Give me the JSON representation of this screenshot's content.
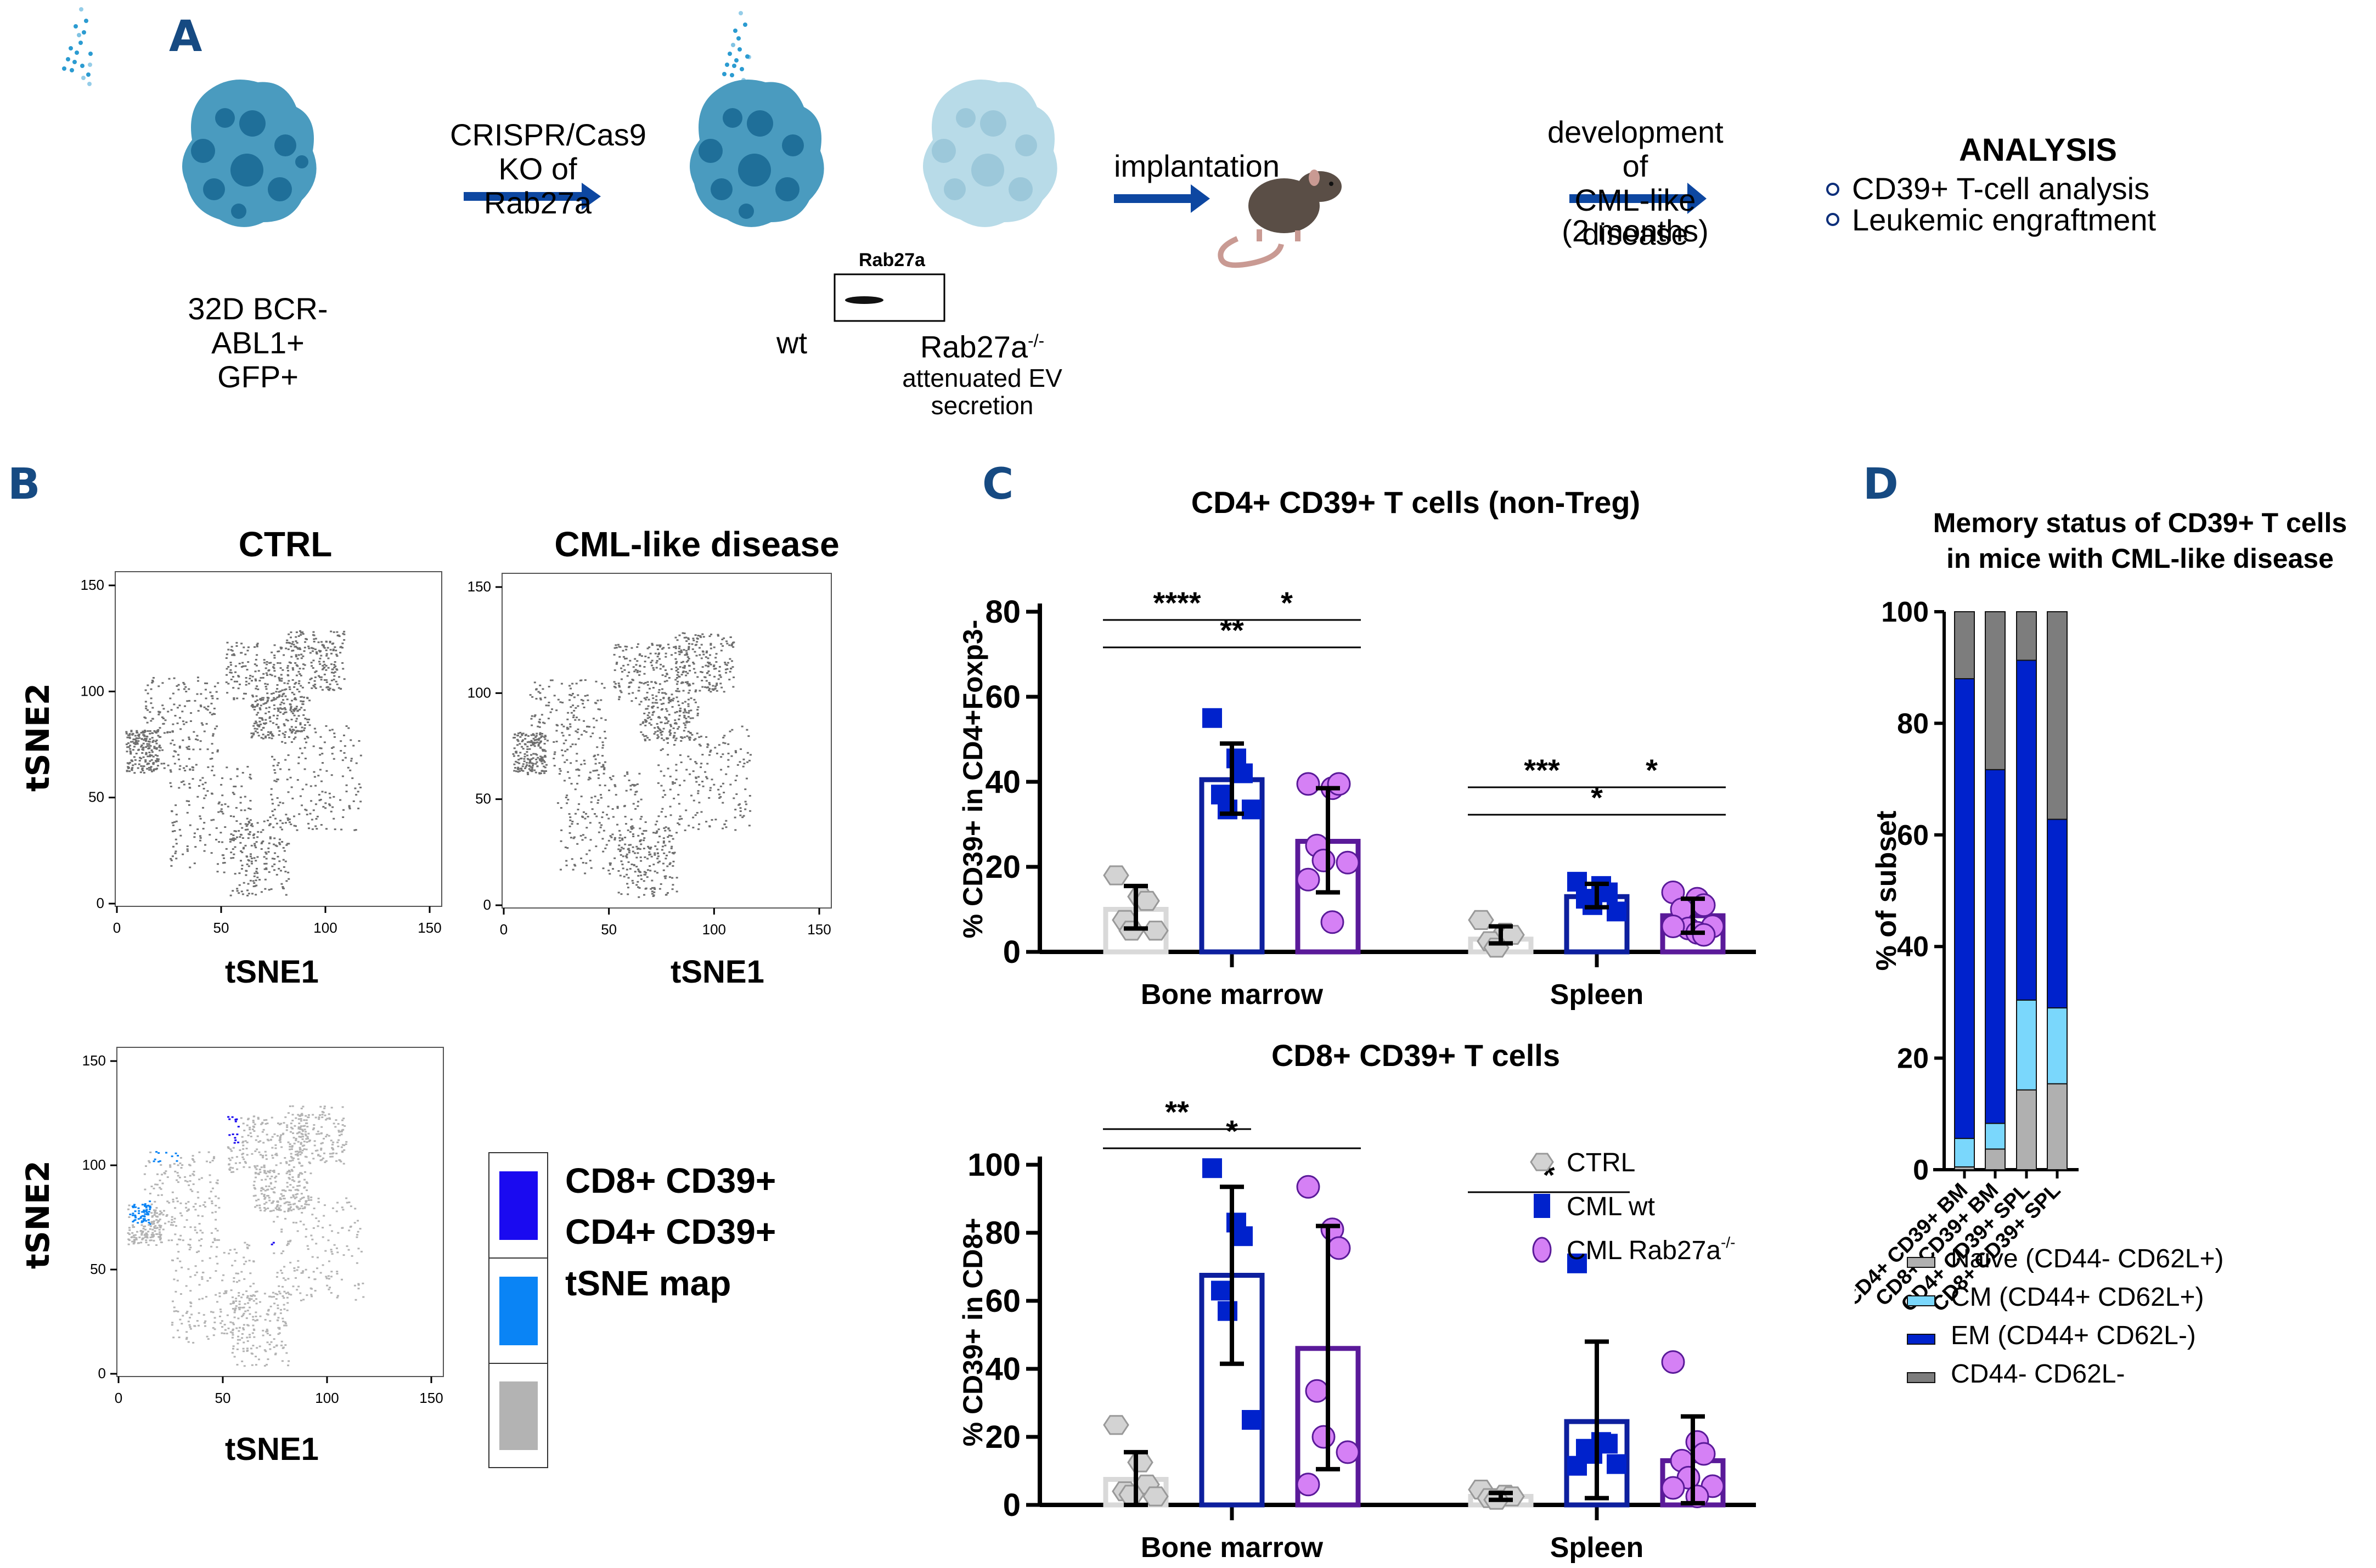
{
  "figure": {
    "panels": {
      "A": {
        "letter": "A",
        "cell_line_label_1": "32D BCR-ABL1+",
        "cell_line_label_2": "GFP+",
        "step1_label_1": "CRISPR/Cas9",
        "step1_label_2": "KO of Rab27a",
        "wt_label": "wt",
        "ko_label": "Rab27a",
        "ko_superscript": "-/-",
        "ko_sublabel_1": "attenuated EV",
        "ko_sublabel_2": "secretion",
        "blot_label": "Rab27a",
        "step2_label": "implantation",
        "step3_label_1": "development of",
        "step3_label_2": "CML-like disease",
        "step3_label_3": "(2 months)",
        "analysis_title": "ANALYSIS",
        "analysis_items": [
          "CD39+ T-cell analysis",
          "Leukemic engraftment"
        ],
        "colors": {
          "arrow": "#0d47a1",
          "cell_dark": "#4a9bbf",
          "cell_light": "#b8dbe8",
          "letter": "#164a82"
        }
      },
      "B": {
        "letter": "B",
        "plots": [
          {
            "title": "CTRL",
            "xlabel": "tSNE1",
            "ylabel": "tSNE2",
            "ticks": [
              "0",
              "50",
              "100",
              "150"
            ]
          },
          {
            "title": "CML-like disease",
            "xlabel": "tSNE1",
            "ylabel": "",
            "ticks": [
              "0",
              "50",
              "100",
              "150"
            ]
          },
          {
            "title": "",
            "xlabel": "tSNE1",
            "ylabel": "tSNE2",
            "ticks": [
              "0",
              "50",
              "100",
              "150"
            ]
          }
        ],
        "legend": [
          {
            "label": "CD8+ CD39+",
            "color": "#1a0af0"
          },
          {
            "label": "CD4+ CD39+",
            "color": "#0a84f5"
          },
          {
            "label": "tSNE map",
            "color": "#b3b3b3"
          }
        ]
      },
      "C": {
        "letter": "C"
      },
      "D": {
        "letter": "D"
      }
    }
  },
  "chart_data": [
    {
      "id": "C-top",
      "type": "bar",
      "title": "CD4+ CD39+ T cells (non-Treg)",
      "xlabel": "",
      "ylabel": "% CD39+ in CD4+Foxp3-",
      "ylim": [
        0,
        80
      ],
      "yticks": [
        0,
        20,
        40,
        60,
        80
      ],
      "categories": [
        "Bone marrow",
        "Spleen"
      ],
      "series": [
        {
          "name": "CTRL",
          "color": "#d3d3d3",
          "stroke": "#999999",
          "marker": "hexagon",
          "means": [
            10,
            3
          ],
          "err_low": [
            5.5,
            2
          ],
          "err_high": [
            15.5,
            6
          ],
          "points": [
            [
              18,
              13,
              12,
              7.5,
              5,
              5
            ],
            [
              7.5,
              4.5,
              4,
              2.5,
              1
            ]
          ]
        },
        {
          "name": "CML wt",
          "color": "#0022cc",
          "stroke": "#0d1f9e",
          "marker": "square",
          "means": [
            40.5,
            13
          ],
          "err_low": [
            32.5,
            10.5
          ],
          "err_high": [
            49,
            16
          ],
          "points": [
            [
              55,
              45.5,
              42,
              37,
              33.5,
              33.5
            ],
            [
              16.5,
              15.5,
              14,
              12.5,
              11,
              9.5
            ]
          ]
        },
        {
          "name": "CML Rab27a-/-",
          "color": "#d580f5",
          "stroke": "#5a1a99",
          "marker": "circle",
          "means": [
            26,
            8.5
          ],
          "err_low": [
            14,
            4.5
          ],
          "err_high": [
            38.5,
            12.5
          ],
          "points": [
            [
              39.5,
              38.5,
              39.5,
              25,
              21.5,
              21,
              17,
              7
            ],
            [
              14,
              12.5,
              11,
              10,
              5.5,
              6,
              6,
              4.5,
              4
            ]
          ]
        }
      ],
      "significance": [
        {
          "group": "Bone marrow",
          "from": 0,
          "to": 1,
          "label": "****",
          "level": 1
        },
        {
          "group": "Bone marrow",
          "from": 1,
          "to": 2,
          "label": "*",
          "level": 1
        },
        {
          "group": "Bone marrow",
          "from": 0,
          "to": 2,
          "label": "**",
          "level": 0
        },
        {
          "group": "Spleen",
          "from": 0,
          "to": 1,
          "label": "***",
          "level": 1
        },
        {
          "group": "Spleen",
          "from": 1,
          "to": 2,
          "label": "*",
          "level": 1
        },
        {
          "group": "Spleen",
          "from": 0,
          "to": 2,
          "label": "*",
          "level": 0
        }
      ]
    },
    {
      "id": "C-bottom",
      "type": "bar",
      "title": "CD8+ CD39+ T cells",
      "xlabel": "",
      "ylabel": "% CD39+ in CD8+",
      "ylim": [
        0,
        100
      ],
      "yticks": [
        0,
        20,
        40,
        60,
        80,
        100
      ],
      "categories": [
        "Bone marrow",
        "Spleen"
      ],
      "legend": [
        "CTRL",
        "CML wt",
        "CML Rab27a-/-"
      ],
      "series": [
        {
          "name": "CTRL",
          "color": "#d3d3d3",
          "stroke": "#999999",
          "marker": "hexagon",
          "means": [
            7.5,
            2.5
          ],
          "err_low": [
            0,
            1.5
          ],
          "err_high": [
            15.5,
            3.5
          ],
          "points": [
            [
              23.5,
              12.5,
              6,
              4,
              3,
              2.5
            ],
            [
              4.5,
              3,
              2.5,
              2,
              1.5
            ]
          ]
        },
        {
          "name": "CML wt",
          "color": "#0022cc",
          "stroke": "#0d1f9e",
          "marker": "square",
          "means": [
            67.5,
            24.5
          ],
          "err_low": [
            41.5,
            2
          ],
          "err_high": [
            93.5,
            48
          ],
          "points": [
            [
              99,
              83,
              79,
              63,
              57,
              25
            ],
            [
              71,
              18.5,
              18,
              16.5,
              15,
              12,
              11.5
            ]
          ]
        },
        {
          "name": "CML Rab27a-/-",
          "color": "#d580f5",
          "stroke": "#5a1a99",
          "marker": "circle",
          "means": [
            46,
            13
          ],
          "err_low": [
            10.5,
            0.5
          ],
          "err_high": [
            82,
            26
          ],
          "points": [
            [
              93.5,
              81,
              75.5,
              33.5,
              20,
              15.5,
              6
            ],
            [
              42,
              18.5,
              15,
              13,
              8,
              5.5,
              5,
              2.5
            ]
          ]
        }
      ],
      "significance": [
        {
          "group": "Bone marrow",
          "from": 0,
          "to": 1,
          "label": "**",
          "level": 1
        },
        {
          "group": "Bone marrow",
          "from": 0,
          "to": 2,
          "label": "*",
          "level": 0
        },
        {
          "group": "Spleen",
          "from": 0,
          "to": 1,
          "label": "*",
          "level": 0
        }
      ]
    },
    {
      "id": "D",
      "type": "bar",
      "stacked": true,
      "title": "Memory status of CD39+ T cells in mice with CML-like disease",
      "title_lines": [
        "Memory status of CD39+ T cells",
        "in mice with CML-like disease"
      ],
      "xlabel": "",
      "ylabel": "% of subset",
      "ylim": [
        0,
        100
      ],
      "yticks": [
        0,
        20,
        40,
        60,
        80,
        100
      ],
      "categories": [
        "CD4+ CD39+ BM",
        "CD8+ CD39+ BM",
        "CD4+ CD39+ SPL",
        "CD8+ CD39+ SPL"
      ],
      "series": [
        {
          "name": "Naive (CD44- CD62L+)",
          "color": "#b0b0b0",
          "values": [
            0.5,
            3.7,
            14.3,
            15.4
          ]
        },
        {
          "name": "CM (CD44+ CD62L+)",
          "color": "#7ad7fc",
          "values": [
            5.1,
            4.6,
            16.1,
            13.6
          ]
        },
        {
          "name": "EM (CD44+ CD62L-)",
          "color": "#0022cc",
          "values": [
            82.4,
            63.4,
            60.9,
            33.8
          ]
        },
        {
          "name": "CD44- CD62L-",
          "color": "#7d7d7d",
          "values": [
            12.0,
            28.3,
            8.7,
            37.2
          ]
        }
      ],
      "legend_position": "bottom"
    }
  ]
}
